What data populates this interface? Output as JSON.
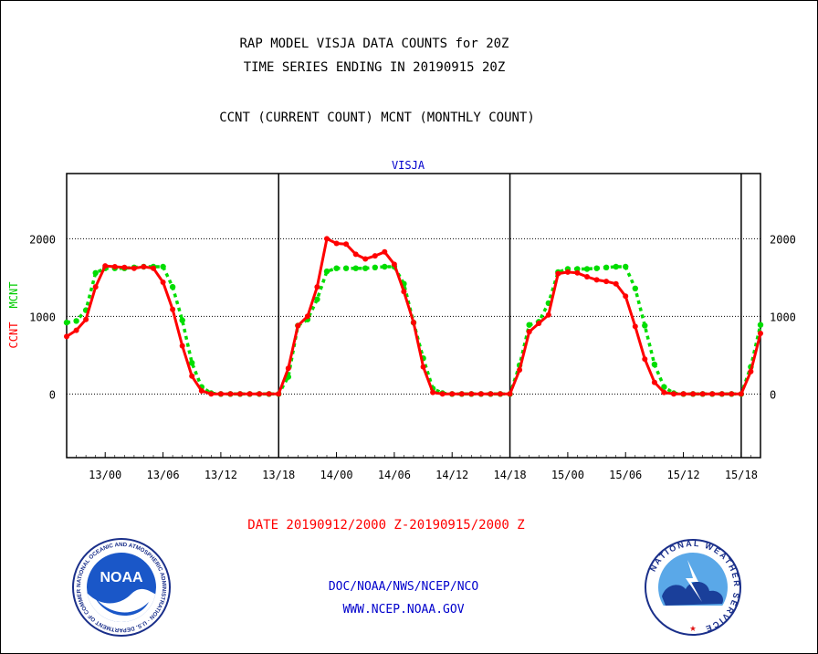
{
  "header": {
    "title_line1": "RAP MODEL VISJA DATA COUNTS for 20Z",
    "title_line2": "TIME SERIES ENDING IN 20190915 20Z",
    "subtitle": "CCNT (CURRENT COUNT) MCNT (MONTHLY COUNT)"
  },
  "colors": {
    "ccnt": "#ff0000",
    "mcnt": "#00dd00",
    "text_blue": "#0000cc",
    "axis": "#000000"
  },
  "chart_data": {
    "type": "line",
    "title": "VISJA",
    "ylabel_left": [
      "CCNT",
      "MCNT"
    ],
    "ylim": [
      -820,
      2840
    ],
    "yticks": [
      0,
      1000,
      2000
    ],
    "xticks": [
      "13/00",
      "13/06",
      "13/12",
      "13/18",
      "14/00",
      "14/06",
      "14/12",
      "14/18",
      "15/00",
      "15/06",
      "15/12",
      "15/18"
    ],
    "day_dividers": [
      "13/18",
      "14/18",
      "15/18 +1h"
    ],
    "x_start_hour": -4,
    "x_end_hour": 68,
    "grid": "dotted horizontal at y ticks",
    "series": [
      {
        "name": "CCNT",
        "color": "#ff0000",
        "x": [
          -4,
          -3,
          -2,
          -1,
          0,
          1,
          2,
          3,
          4,
          5,
          6,
          7,
          8,
          9,
          10,
          11,
          12,
          13,
          14,
          15,
          16,
          17,
          18,
          19,
          20,
          21,
          22,
          23,
          24,
          25,
          26,
          27,
          28,
          29,
          30,
          31,
          32,
          33,
          34,
          35,
          36,
          37,
          38,
          39,
          40,
          41,
          42,
          43,
          44,
          45,
          46,
          47,
          48,
          49,
          50,
          51,
          52,
          53,
          54,
          55,
          56,
          57,
          58,
          59,
          60,
          61,
          62,
          63,
          64,
          65,
          66,
          67,
          68
        ],
        "y": [
          740,
          820,
          960,
          1380,
          1650,
          1640,
          1630,
          1620,
          1640,
          1620,
          1440,
          1090,
          620,
          230,
          40,
          0,
          0,
          0,
          0,
          0,
          0,
          0,
          0,
          330,
          880,
          1000,
          1380,
          2000,
          1940,
          1930,
          1800,
          1740,
          1780,
          1830,
          1670,
          1320,
          920,
          350,
          20,
          0,
          0,
          0,
          0,
          0,
          0,
          0,
          0,
          310,
          800,
          910,
          1020,
          1550,
          1570,
          1560,
          1510,
          1470,
          1450,
          1420,
          1260,
          870,
          450,
          150,
          20,
          0,
          0,
          0,
          0,
          0,
          0,
          0,
          0,
          290,
          780
        ]
      },
      {
        "name": "MCNT",
        "color": "#00dd00",
        "x": [
          -4,
          -3,
          -2,
          -1,
          0,
          1,
          2,
          3,
          4,
          5,
          6,
          7,
          8,
          9,
          10,
          11,
          12,
          13,
          14,
          15,
          16,
          17,
          18,
          19,
          20,
          21,
          22,
          23,
          24,
          25,
          26,
          27,
          28,
          29,
          30,
          31,
          32,
          33,
          34,
          35,
          36,
          37,
          38,
          39,
          40,
          41,
          42,
          43,
          44,
          45,
          46,
          47,
          48,
          49,
          50,
          51,
          52,
          53,
          54,
          55,
          56,
          57,
          58,
          59,
          60,
          61,
          62,
          63,
          64,
          65,
          66,
          67,
          68
        ],
        "y": [
          920,
          940,
          1080,
          1560,
          1620,
          1620,
          1620,
          1630,
          1640,
          1640,
          1640,
          1380,
          950,
          400,
          90,
          10,
          0,
          0,
          0,
          0,
          0,
          0,
          0,
          220,
          880,
          960,
          1220,
          1580,
          1620,
          1620,
          1620,
          1620,
          1630,
          1640,
          1640,
          1420,
          920,
          460,
          70,
          10,
          0,
          0,
          0,
          0,
          0,
          0,
          0,
          370,
          890,
          930,
          1170,
          1570,
          1610,
          1610,
          1610,
          1620,
          1630,
          1640,
          1640,
          1360,
          880,
          380,
          90,
          10,
          0,
          0,
          0,
          0,
          0,
          0,
          0,
          350,
          890
        ]
      }
    ]
  },
  "footer": {
    "date_range": "DATE 20190912/2000 Z-20190915/2000 Z",
    "credit": "DOC/NOAA/NWS/NCEP/NCO",
    "url": "WWW.NCEP.NOAA.GOV",
    "noaa_logo_text": "NOAA",
    "noaa_ring_text": "NATIONAL OCEANIC AND ATMOSPHERIC ADMINISTRATION · U.S. DEPARTMENT OF COMMERCE",
    "nws_ring_text": "NATIONAL WEATHER SERVICE"
  }
}
